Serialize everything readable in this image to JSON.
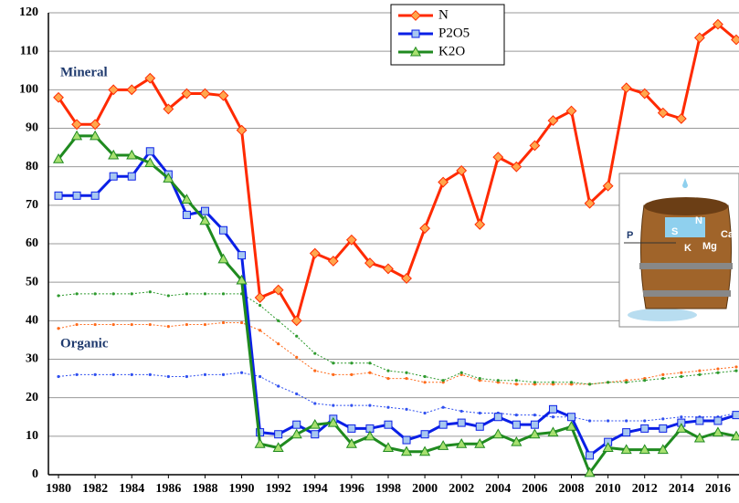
{
  "chart_data": {
    "type": "line",
    "annotations": {
      "mineral": "Mineral",
      "organic": "Organic"
    },
    "x": [
      1980,
      1981,
      1982,
      1983,
      1984,
      1985,
      1986,
      1987,
      1988,
      1989,
      1990,
      1991,
      1992,
      1993,
      1994,
      1995,
      1996,
      1997,
      1998,
      1999,
      2000,
      2001,
      2002,
      2003,
      2004,
      2005,
      2006,
      2007,
      2008,
      2009,
      2010,
      2011,
      2012,
      2013,
      2014,
      2015,
      2016,
      2017
    ],
    "xlim": [
      1979.45,
      2017.15
    ],
    "xticks": [
      1980,
      1982,
      1984,
      1986,
      1988,
      1990,
      1992,
      1994,
      1996,
      1998,
      2000,
      2002,
      2004,
      2006,
      2008,
      2010,
      2012,
      2014,
      2016
    ],
    "ylim": [
      0,
      120
    ],
    "yticks": [
      0,
      10,
      20,
      30,
      40,
      50,
      60,
      70,
      80,
      90,
      100,
      110,
      120
    ],
    "grid": true,
    "series": [
      {
        "name": "N",
        "color": "#ff2a00",
        "marker_fill": "#ffa64d",
        "marker": "diamond",
        "values": [
          98,
          91,
          91,
          100,
          100,
          103,
          95,
          99,
          99,
          98.5,
          89.5,
          46,
          48,
          40,
          57.5,
          55.5,
          61,
          55,
          53.5,
          51,
          64,
          76,
          79,
          65,
          82.5,
          80,
          85.5,
          92,
          94.5,
          70.5,
          75,
          100.5,
          99,
          94,
          92.5,
          113.5,
          117,
          113
        ]
      },
      {
        "name": "P2O5",
        "color": "#0a1fe6",
        "marker_fill": "#a8c8f0",
        "marker": "square",
        "values": [
          72.5,
          72.5,
          72.5,
          77.5,
          77.5,
          84,
          78,
          67.5,
          68.5,
          63.5,
          57,
          11,
          10.5,
          13,
          10.5,
          14.5,
          12,
          12,
          13,
          9,
          10.5,
          13,
          13.5,
          12.5,
          15,
          13,
          13,
          17,
          15,
          5,
          8.5,
          11,
          12,
          12,
          13.5,
          14,
          14,
          15.5
        ]
      },
      {
        "name": "K2O",
        "color": "#1f8a1f",
        "marker_fill": "#a8e070",
        "marker": "triangle",
        "values": [
          82,
          88,
          88,
          83,
          83,
          81,
          77,
          71.5,
          66,
          56,
          50.5,
          8,
          7,
          10.5,
          13,
          13.5,
          8,
          10,
          7,
          6,
          6,
          7.5,
          8,
          8,
          10.5,
          8.5,
          10.5,
          11,
          12.5,
          0.5,
          7,
          6.5,
          6.5,
          6.5,
          12,
          9.5,
          11,
          10
        ]
      }
    ],
    "organic_series": [
      {
        "color": "#ff6a1a",
        "values": [
          38,
          39,
          39,
          39,
          39,
          39,
          38.5,
          39,
          39,
          39.5,
          39.5,
          37.5,
          34,
          30.5,
          27,
          26,
          26,
          26.5,
          25,
          25,
          24,
          24,
          26,
          24.5,
          24,
          23.5,
          23.5,
          23.5,
          23.5,
          23.5,
          24,
          24.5,
          25,
          26,
          26.5,
          27,
          27.5,
          28
        ]
      },
      {
        "color": "#3050f0",
        "values": [
          25.5,
          26,
          26,
          26,
          26,
          26,
          25.5,
          25.5,
          26,
          26,
          26.5,
          25.5,
          23,
          21,
          18.5,
          18,
          18,
          18,
          17.5,
          17,
          16,
          17.5,
          16.5,
          16,
          16,
          15.5,
          15.5,
          15,
          15,
          14,
          14,
          14,
          14,
          14.5,
          15,
          15,
          15,
          16
        ]
      },
      {
        "color": "#2e9a2e",
        "values": [
          46.5,
          47,
          47,
          47,
          47,
          47.5,
          46.5,
          47,
          47,
          47,
          47,
          44,
          40,
          36,
          31.5,
          29,
          29,
          29,
          27,
          26.5,
          25.5,
          24.5,
          26.5,
          25,
          24.5,
          24.5,
          24,
          24,
          24,
          23.5,
          24,
          24,
          24.5,
          25,
          25.5,
          26,
          26.5,
          27
        ]
      }
    ],
    "inset": {
      "labels": [
        "P",
        "S",
        "N",
        "K",
        "Mg",
        "Ca"
      ]
    }
  }
}
